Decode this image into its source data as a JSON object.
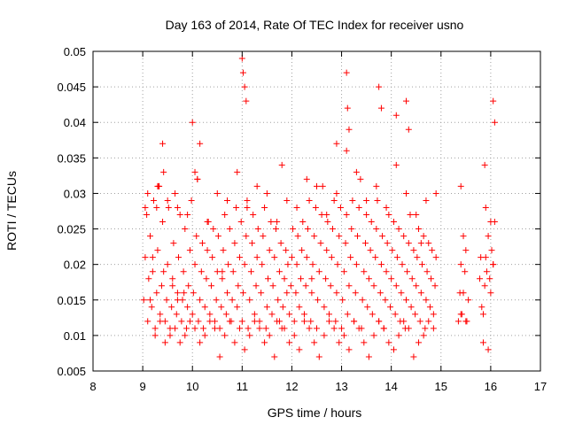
{
  "chart_data": {
    "type": "scatter",
    "title": "Day 163 of 2014, Rate Of TEC Index for receiver usno",
    "xlabel": "GPS time / hours",
    "ylabel": "ROTI / TECUs",
    "xlim": [
      8,
      17
    ],
    "ylim": [
      0.005,
      0.05
    ],
    "grid": true,
    "marker": "+",
    "color": "#ff0000",
    "x_ticks": [
      "8",
      "9",
      "10",
      "11",
      "12",
      "13",
      "14",
      "15",
      "16",
      "17"
    ],
    "y_ticks": [
      "0.005",
      "0.01",
      "0.015",
      "0.02",
      "0.025",
      "0.03",
      "0.035",
      "0.04",
      "0.045",
      "0.05"
    ],
    "series": [
      {
        "name": "usno",
        "x": [
          9.02,
          9.05,
          9.08,
          9.1,
          9.12,
          9.15,
          9.18,
          9.2,
          9.22,
          9.25,
          9.28,
          9.3,
          9.32,
          9.35,
          9.38,
          9.4,
          9.42,
          9.45,
          9.48,
          9.5,
          9.52,
          9.55,
          9.58,
          9.6,
          9.62,
          9.65,
          9.68,
          9.7,
          9.72,
          9.75,
          9.78,
          9.8,
          9.82,
          9.85,
          9.88,
          9.9,
          9.92,
          9.95,
          9.98,
          10.0,
          10.02,
          10.05,
          10.08,
          10.1,
          10.12,
          10.15,
          10.18,
          10.2,
          10.22,
          10.25,
          10.28,
          10.3,
          10.32,
          10.35,
          10.38,
          10.4,
          10.42,
          10.45,
          10.48,
          10.5,
          10.52,
          10.55,
          10.58,
          10.6,
          10.62,
          10.65,
          10.68,
          10.7,
          10.72,
          10.75,
          10.78,
          10.8,
          10.82,
          10.85,
          10.88,
          10.9,
          10.92,
          10.95,
          10.98,
          11.0,
          11.02,
          11.05,
          11.08,
          11.1,
          11.12,
          11.15,
          11.18,
          11.2,
          11.22,
          11.25,
          11.28,
          11.3,
          11.32,
          11.35,
          11.38,
          11.4,
          11.42,
          11.45,
          11.48,
          11.5,
          11.52,
          11.55,
          11.58,
          11.6,
          11.62,
          11.65,
          11.68,
          11.7,
          11.72,
          11.75,
          11.78,
          11.8,
          11.82,
          11.85,
          11.88,
          11.9,
          11.92,
          11.95,
          11.98,
          12.0,
          12.02,
          12.05,
          12.08,
          12.1,
          12.12,
          12.15,
          12.18,
          12.2,
          12.22,
          12.25,
          12.28,
          12.3,
          12.32,
          12.35,
          12.38,
          12.4,
          12.42,
          12.45,
          12.48,
          12.5,
          12.52,
          12.55,
          12.58,
          12.6,
          12.62,
          12.65,
          12.68,
          12.7,
          12.72,
          12.75,
          12.78,
          12.8,
          12.82,
          12.85,
          12.88,
          12.9,
          12.92,
          12.95,
          12.98,
          13.0,
          13.02,
          13.05,
          13.08,
          13.1,
          13.12,
          13.15,
          13.18,
          13.2,
          13.22,
          13.25,
          13.28,
          13.3,
          13.32,
          13.35,
          13.38,
          13.4,
          13.42,
          13.45,
          13.48,
          13.5,
          13.52,
          13.55,
          13.58,
          13.6,
          13.62,
          13.65,
          13.68,
          13.7,
          13.72,
          13.75,
          13.78,
          13.8,
          13.82,
          13.85,
          13.88,
          13.9,
          13.92,
          13.95,
          13.98,
          14.0,
          14.02,
          14.05,
          14.08,
          14.1,
          14.12,
          14.15,
          14.18,
          14.2,
          14.22,
          14.25,
          14.28,
          14.3,
          14.32,
          14.35,
          14.38,
          14.4,
          14.42,
          14.45,
          14.48,
          14.5,
          14.52,
          14.55,
          14.58,
          14.6,
          14.62,
          14.65,
          14.68,
          14.7,
          14.72,
          14.75,
          14.78,
          14.8,
          14.82,
          14.85,
          14.88,
          14.9,
          15.35,
          15.38,
          15.4,
          15.42,
          15.45,
          15.48,
          15.5,
          15.52,
          15.55,
          15.78,
          15.8,
          15.82,
          15.85,
          15.88,
          15.9,
          15.92,
          15.95,
          15.98,
          16.0,
          16.02,
          16.05,
          16.08,
          9.05,
          9.15,
          9.25,
          9.35,
          9.45,
          9.55,
          9.65,
          9.75,
          9.85,
          9.95,
          10.05,
          10.15,
          10.25,
          10.35,
          10.45,
          10.55,
          10.65,
          10.75,
          10.85,
          10.95,
          11.05,
          11.15,
          11.25,
          11.35,
          11.45,
          11.55,
          11.65,
          11.75,
          11.85,
          11.95,
          12.05,
          12.15,
          12.25,
          12.35,
          12.45,
          12.55,
          12.65,
          12.75,
          12.85,
          12.95,
          13.05,
          13.15,
          13.25,
          13.35,
          13.45,
          13.55,
          13.65,
          13.75,
          13.85,
          13.95,
          14.05,
          14.15,
          14.25,
          14.35,
          14.45,
          14.55,
          14.65,
          14.75,
          14.85,
          15.4,
          15.5,
          15.85,
          15.95,
          16.05,
          9.1,
          9.3,
          9.5,
          9.7,
          9.9,
          10.1,
          10.3,
          10.5,
          10.7,
          10.9,
          11.1,
          11.3,
          11.5,
          11.7,
          11.9,
          12.1,
          12.3,
          12.5,
          12.7,
          12.9,
          13.1,
          13.3,
          13.5,
          13.7,
          13.9,
          14.1,
          14.3,
          14.5,
          14.7,
          14.9,
          15.45,
          15.9,
          16.0,
          10.0,
          10.15,
          11.0,
          11.02,
          11.05,
          11.08,
          12.9,
          13.1,
          13.12,
          13.15,
          13.75,
          13.8,
          14.1,
          14.3,
          14.35,
          16.05,
          16.08,
          9.4,
          10.05,
          15.4,
          15.88,
          11.8,
          9.2,
          9.6,
          10.6,
          12.4,
          14.6,
          9.42,
          9.28,
          9.33,
          9.7,
          9.83
        ],
        "y": [
          0.015,
          0.021,
          0.027,
          0.012,
          0.018,
          0.024,
          0.014,
          0.019,
          0.029,
          0.011,
          0.016,
          0.022,
          0.031,
          0.013,
          0.017,
          0.026,
          0.033,
          0.012,
          0.015,
          0.02,
          0.028,
          0.011,
          0.014,
          0.018,
          0.023,
          0.03,
          0.013,
          0.016,
          0.021,
          0.027,
          0.012,
          0.015,
          0.019,
          0.025,
          0.011,
          0.014,
          0.017,
          0.022,
          0.029,
          0.013,
          0.016,
          0.02,
          0.024,
          0.032,
          0.012,
          0.015,
          0.019,
          0.023,
          0.011,
          0.014,
          0.018,
          0.022,
          0.026,
          0.013,
          0.017,
          0.021,
          0.025,
          0.012,
          0.015,
          0.019,
          0.024,
          0.011,
          0.014,
          0.018,
          0.022,
          0.027,
          0.013,
          0.016,
          0.02,
          0.025,
          0.012,
          0.015,
          0.019,
          0.023,
          0.028,
          0.014,
          0.017,
          0.021,
          0.026,
          0.012,
          0.016,
          0.02,
          0.024,
          0.029,
          0.011,
          0.015,
          0.019,
          0.023,
          0.027,
          0.013,
          0.017,
          0.021,
          0.025,
          0.012,
          0.016,
          0.02,
          0.024,
          0.028,
          0.011,
          0.014,
          0.018,
          0.022,
          0.026,
          0.013,
          0.017,
          0.021,
          0.025,
          0.012,
          0.015,
          0.019,
          0.023,
          0.011,
          0.014,
          0.018,
          0.022,
          0.016,
          0.02,
          0.013,
          0.017,
          0.021,
          0.025,
          0.012,
          0.016,
          0.02,
          0.024,
          0.014,
          0.018,
          0.022,
          0.026,
          0.013,
          0.017,
          0.021,
          0.025,
          0.029,
          0.012,
          0.016,
          0.02,
          0.024,
          0.028,
          0.011,
          0.015,
          0.019,
          0.023,
          0.027,
          0.031,
          0.014,
          0.018,
          0.022,
          0.026,
          0.013,
          0.017,
          0.021,
          0.025,
          0.029,
          0.012,
          0.016,
          0.02,
          0.024,
          0.028,
          0.011,
          0.015,
          0.019,
          0.023,
          0.027,
          0.013,
          0.017,
          0.021,
          0.025,
          0.029,
          0.012,
          0.016,
          0.02,
          0.024,
          0.028,
          0.032,
          0.011,
          0.015,
          0.019,
          0.023,
          0.027,
          0.014,
          0.018,
          0.022,
          0.026,
          0.013,
          0.017,
          0.021,
          0.025,
          0.029,
          0.012,
          0.016,
          0.02,
          0.024,
          0.011,
          0.015,
          0.019,
          0.023,
          0.027,
          0.014,
          0.018,
          0.022,
          0.026,
          0.013,
          0.017,
          0.021,
          0.025,
          0.012,
          0.016,
          0.02,
          0.024,
          0.011,
          0.015,
          0.019,
          0.023,
          0.027,
          0.014,
          0.018,
          0.022,
          0.013,
          0.017,
          0.021,
          0.025,
          0.012,
          0.016,
          0.02,
          0.024,
          0.011,
          0.015,
          0.019,
          0.023,
          0.014,
          0.018,
          0.022,
          0.013,
          0.017,
          0.021,
          0.012,
          0.016,
          0.02,
          0.013,
          0.016,
          0.019,
          0.022,
          0.012,
          0.015,
          0.018,
          0.021,
          0.014,
          0.013,
          0.017,
          0.021,
          0.019,
          0.024,
          0.018,
          0.016,
          0.022,
          0.02,
          0.026,
          0.028,
          0.015,
          0.01,
          0.012,
          0.009,
          0.01,
          0.011,
          0.009,
          0.01,
          0.012,
          0.011,
          0.009,
          0.01,
          0.012,
          0.011,
          0.007,
          0.01,
          0.012,
          0.009,
          0.011,
          0.008,
          0.01,
          0.012,
          0.011,
          0.009,
          0.01,
          0.007,
          0.012,
          0.011,
          0.009,
          0.01,
          0.008,
          0.012,
          0.011,
          0.009,
          0.007,
          0.01,
          0.012,
          0.011,
          0.009,
          0.01,
          0.008,
          0.012,
          0.011,
          0.009,
          0.007,
          0.01,
          0.012,
          0.011,
          0.009,
          0.008,
          0.01,
          0.012,
          0.011,
          0.007,
          0.009,
          0.01,
          0.012,
          0.011,
          0.013,
          0.012,
          0.009,
          0.008,
          0.02,
          0.03,
          0.031,
          0.029,
          0.028,
          0.027,
          0.032,
          0.026,
          0.03,
          0.029,
          0.033,
          0.028,
          0.031,
          0.03,
          0.026,
          0.029,
          0.028,
          0.032,
          0.031,
          0.027,
          0.03,
          0.036,
          0.033,
          0.029,
          0.031,
          0.028,
          0.034,
          0.03,
          0.027,
          0.029,
          0.03,
          0.024,
          0.028,
          0.026,
          0.04,
          0.037,
          0.049,
          0.047,
          0.045,
          0.043,
          0.037,
          0.047,
          0.042,
          0.039,
          0.045,
          0.042,
          0.041,
          0.043,
          0.039,
          0.043,
          0.04,
          0.037,
          0.033,
          0.031,
          0.034,
          0.034,
          0.021,
          0.017,
          0.019,
          0.018,
          0.023,
          0.019,
          0.028,
          0.031,
          0.015,
          0.016
        ]
      }
    ]
  }
}
